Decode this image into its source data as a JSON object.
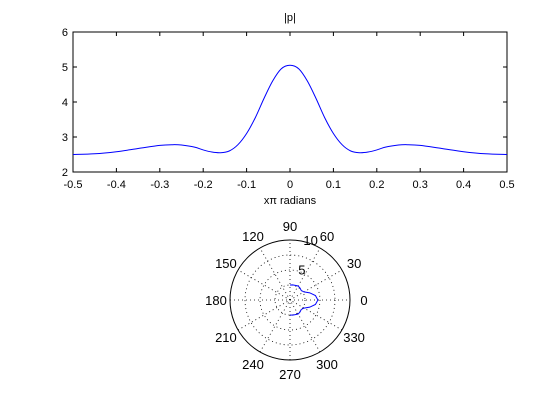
{
  "chart_data": [
    {
      "type": "line",
      "title": "|p|",
      "xlabel": "xπ radians",
      "ylabel": "",
      "xlim": [
        -0.5,
        0.5
      ],
      "ylim": [
        2,
        6
      ],
      "xticks": [
        "-0.5",
        "-0.4",
        "-0.3",
        "-0.2",
        "-0.1",
        "0",
        "0.1",
        "0.2",
        "0.3",
        "0.4",
        "0.5"
      ],
      "yticks": [
        "2",
        "3",
        "4",
        "5",
        "6"
      ],
      "grid": false,
      "line_color": "#0000ff",
      "x": [
        -0.5,
        -0.45,
        -0.4,
        -0.35,
        -0.3,
        -0.27,
        -0.25,
        -0.22,
        -0.2,
        -0.18,
        -0.16,
        -0.14,
        -0.12,
        -0.1,
        -0.08,
        -0.06,
        -0.04,
        -0.02,
        0,
        0.02,
        0.04,
        0.06,
        0.08,
        0.1,
        0.12,
        0.14,
        0.16,
        0.18,
        0.2,
        0.22,
        0.25,
        0.27,
        0.3,
        0.35,
        0.4,
        0.45,
        0.5
      ],
      "y": [
        2.5,
        2.52,
        2.58,
        2.67,
        2.76,
        2.78,
        2.77,
        2.71,
        2.63,
        2.57,
        2.55,
        2.6,
        2.78,
        3.1,
        3.55,
        4.1,
        4.6,
        4.95,
        5.05,
        4.95,
        4.6,
        4.1,
        3.55,
        3.1,
        2.78,
        2.6,
        2.55,
        2.57,
        2.63,
        2.71,
        2.77,
        2.78,
        2.76,
        2.67,
        2.58,
        2.52,
        2.5
      ]
    },
    {
      "type": "polar",
      "title": "",
      "rlim": [
        0,
        10
      ],
      "rticks": [
        "5",
        "10"
      ],
      "angle_labels": [
        "0",
        "30",
        "60",
        "90",
        "120",
        "150",
        "180",
        "210",
        "240",
        "270",
        "300",
        "330"
      ],
      "grid": true,
      "line_color": "#0000ff",
      "theta_deg": [
        -90,
        -80,
        -70,
        -60,
        -50,
        -40,
        -30,
        -20,
        -10,
        0,
        10,
        20,
        30,
        40,
        50,
        60,
        70,
        80,
        90
      ],
      "r": [
        2.5,
        2.55,
        2.6,
        2.7,
        2.6,
        2.45,
        2.7,
        3.5,
        4.3,
        4.65,
        4.3,
        3.5,
        2.7,
        2.45,
        2.6,
        2.7,
        2.6,
        2.55,
        2.5
      ]
    }
  ]
}
